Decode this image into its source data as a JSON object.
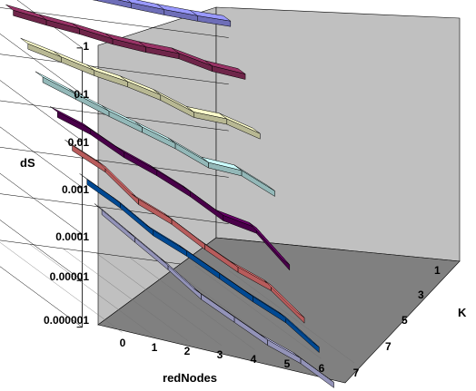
{
  "chart_data": {
    "type": "3d-ribbon",
    "title": "",
    "xlabel": "redNodes",
    "ylabel": "dS",
    "zlabel": "K",
    "y_scale": "log",
    "y_tick_labels": [
      "1",
      "0.1",
      "0.01",
      "0.001",
      "0.0001",
      "0.00001",
      "0.000001"
    ],
    "x_tick_labels": [
      "0",
      "1",
      "2",
      "3",
      "4",
      "5",
      "6",
      "7"
    ],
    "z_tick_labels": [
      "1",
      "3",
      "5",
      "7"
    ],
    "x": [
      0,
      1,
      2,
      3,
      4,
      5,
      6,
      7
    ],
    "series": [
      {
        "k": 1,
        "color": "#9999ff",
        "values": [
          0.79,
          0.71,
          0.67,
          0.6,
          0.52,
          0.46,
          0.42,
          0.4
        ]
      },
      {
        "k": 2,
        "color": "#993366",
        "values": [
          0.26,
          0.2,
          0.16,
          0.12,
          0.1,
          0.09,
          0.06,
          0.05
        ]
      },
      {
        "k": 3,
        "color": "#ffffcc",
        "values": [
          0.085,
          0.055,
          0.035,
          0.025,
          0.016,
          0.0085,
          0.0075,
          0.0045
        ]
      },
      {
        "k": 4,
        "color": "#ccffff",
        "values": [
          0.028,
          0.015,
          0.008,
          0.0045,
          0.0025,
          0.0012,
          0.001,
          0.00045
        ]
      },
      {
        "k": 5,
        "color": "#660066",
        "values": [
          0.0085,
          0.0045,
          0.0018,
          0.0009,
          0.0004,
          0.00015,
          0.0001,
          2e-05
        ]
      },
      {
        "k": 6,
        "color": "#ff8080",
        "values": [
          0.0028,
          0.0012,
          0.0003,
          0.00014,
          5e-05,
          2e-05,
          1e-05,
          2.5e-06
        ]
      },
      {
        "k": 7,
        "color": "#0066cc",
        "values": [
          0.0009,
          0.00035,
          0.00011,
          5e-05,
          2e-05,
          8e-06,
          3.5e-06,
          1e-06
        ]
      },
      {
        "k": 8,
        "color": "#ccccff",
        "values": [
          0.00035,
          0.00011,
          3.5e-05,
          1e-05,
          4e-06,
          1.6e-06,
          8e-07,
          3e-07
        ]
      }
    ],
    "grid": true,
    "legend": "none",
    "wall_color": "#c0c0c0",
    "floor_color": "#808080"
  }
}
